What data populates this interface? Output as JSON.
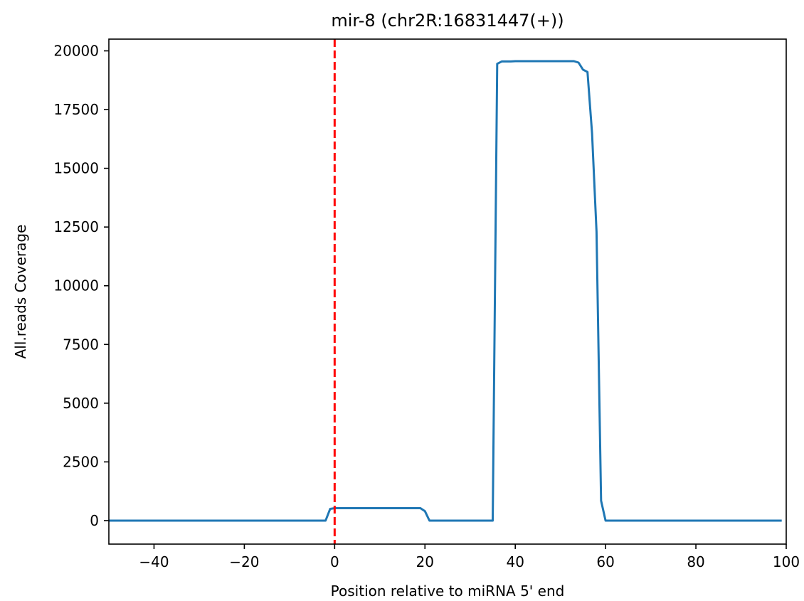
{
  "chart_data": {
    "type": "line",
    "title": "mir-8 (chr2R:16831447(+))",
    "xlabel": "Position relative to miRNA 5' end",
    "ylabel": "All.reads Coverage",
    "xlim": [
      -50,
      100
    ],
    "ylim": [
      -1000,
      20500
    ],
    "xticks": [
      -40,
      -20,
      0,
      20,
      40,
      60,
      80,
      100
    ],
    "yticks": [
      0,
      2500,
      5000,
      7500,
      10000,
      12500,
      15000,
      17500,
      20000
    ],
    "xtick_labels": [
      "−40",
      "−20",
      "0",
      "20",
      "40",
      "60",
      "80",
      "100"
    ],
    "ytick_labels": [
      "0",
      "2500",
      "5000",
      "7500",
      "10000",
      "12500",
      "15000",
      "17500",
      "20000"
    ],
    "grid": false,
    "series": [
      {
        "color": "#1f77b4",
        "x": [
          -50,
          -2,
          -1,
          0,
          1,
          19,
          20,
          21,
          35,
          36,
          37,
          38,
          39,
          40,
          52,
          53,
          54,
          55,
          56,
          57,
          58,
          59,
          60,
          99
        ],
        "y": [
          0,
          0,
          500,
          530,
          530,
          530,
          400,
          0,
          0,
          19450,
          19550,
          19550,
          19550,
          19560,
          19560,
          19560,
          19500,
          19200,
          19100,
          16500,
          12300,
          850,
          0,
          0
        ]
      }
    ],
    "reference_lines": [
      {
        "orientation": "vertical",
        "x": 0,
        "color": "#ff0000",
        "style": "dashed"
      }
    ]
  }
}
